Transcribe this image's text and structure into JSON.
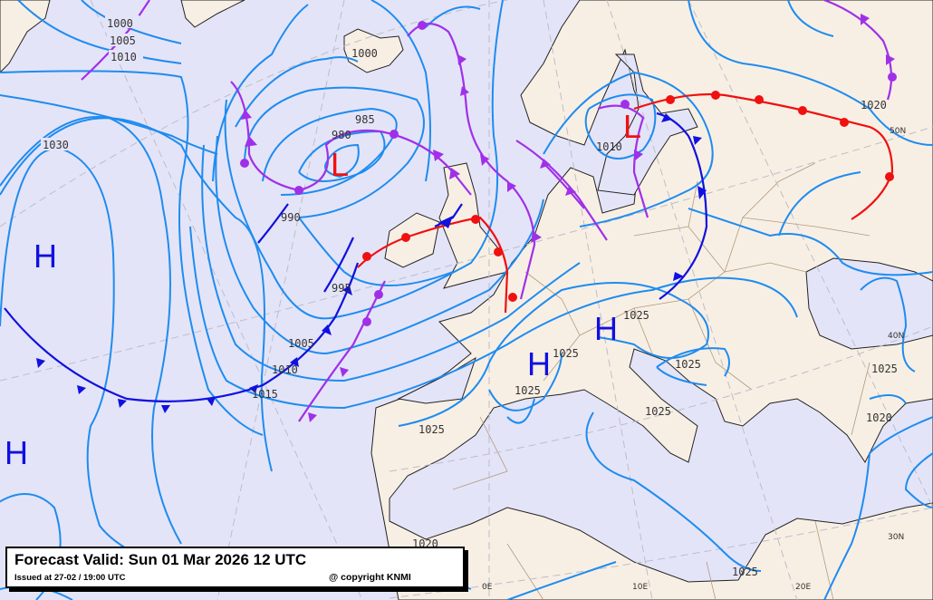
{
  "map": {
    "colors": {
      "sea": "#e4e4f8",
      "land": "#f8efe4",
      "isobar": "#1e8cf0",
      "high": "#1010e0",
      "low": "#f01010",
      "cold_front": "#1010e0",
      "warm_front": "#f01010",
      "occluded_front": "#a030e8"
    },
    "isobar_labels": [
      "1000",
      "1005",
      "1010",
      "1030",
      "1000",
      "985",
      "980",
      "990",
      "995",
      "1005",
      "1010",
      "1015",
      "1025",
      "1025",
      "1025",
      "1025",
      "1025",
      "1025",
      "1025",
      "1020",
      "1020",
      "1010",
      "1025",
      "1020"
    ],
    "pressure_centers": [
      {
        "type": "H",
        "label": "H"
      },
      {
        "type": "H",
        "label": "H"
      },
      {
        "type": "L",
        "label": "L"
      },
      {
        "type": "L",
        "label": "L"
      },
      {
        "type": "H",
        "label": "H"
      },
      {
        "type": "H",
        "label": "H"
      }
    ],
    "grid_labels": [
      "50N",
      "40N",
      "30N",
      "0E",
      "10E",
      "20E"
    ]
  },
  "caption": {
    "title": "Forecast Valid:  Sun 01 Mar 2026 12 UTC",
    "issued": "Issued at 27-02 / 19:00 UTC",
    "copyright": "@ copyright KNMI"
  }
}
